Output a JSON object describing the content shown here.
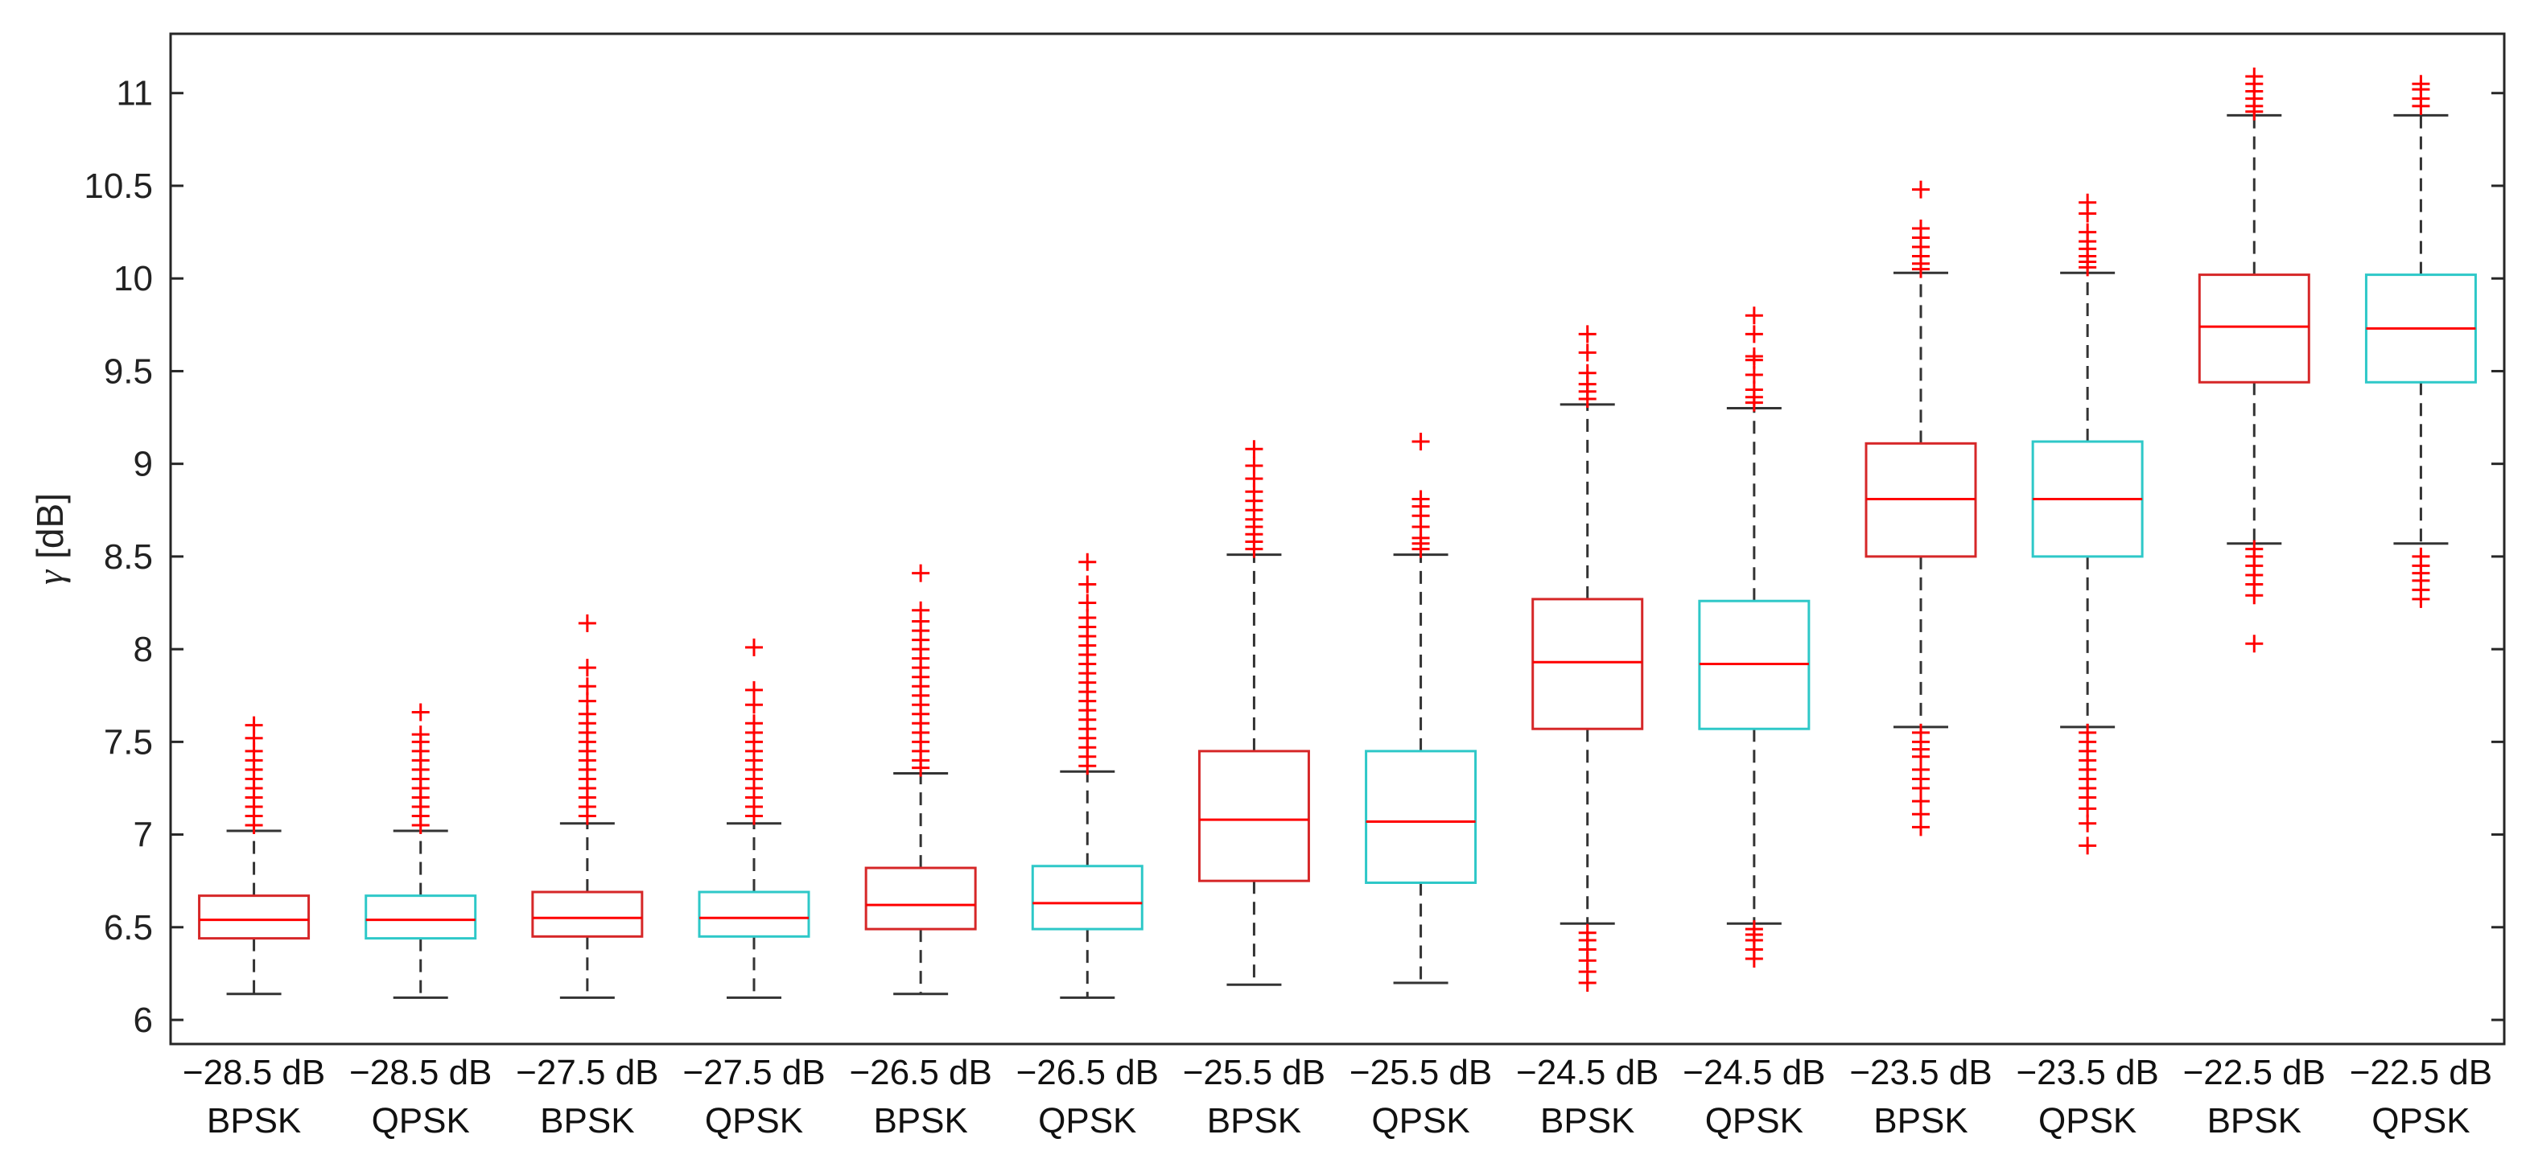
{
  "chart_data": {
    "type": "boxplot",
    "title": "",
    "xlabel": "",
    "ylabel_symbol": "γ",
    "ylabel_unit": "[dB]",
    "ylim": [
      5.87,
      11.32
    ],
    "yticks": [
      6,
      6.5,
      7,
      7.5,
      8,
      8.5,
      9,
      9.5,
      10,
      10.5,
      11
    ],
    "ytick_labels": [
      "6",
      "6.5",
      "7",
      "7.5",
      "8",
      "8.5",
      "9",
      "9.5",
      "10",
      "10.5",
      "11"
    ],
    "colors": {
      "BPSK": "#d62728",
      "QPSK": "#2ec8c8",
      "median": "#ff0000",
      "whisker": "#333333",
      "outlier": "#ff0000"
    },
    "categories": [
      {
        "snr": "−28.5 dB",
        "mod": "BPSK",
        "q1": 6.44,
        "median": 6.54,
        "q3": 6.67,
        "whisker_low": 6.14,
        "whisker_high": 7.02,
        "outliers": [
          7.05,
          7.1,
          7.15,
          7.2,
          7.25,
          7.3,
          7.35,
          7.4,
          7.45,
          7.52,
          7.59
        ]
      },
      {
        "snr": "−28.5 dB",
        "mod": "QPSK",
        "q1": 6.44,
        "median": 6.54,
        "q3": 6.67,
        "whisker_low": 6.12,
        "whisker_high": 7.02,
        "outliers": [
          7.05,
          7.1,
          7.15,
          7.2,
          7.25,
          7.3,
          7.35,
          7.4,
          7.45,
          7.5,
          7.54,
          7.66
        ]
      },
      {
        "snr": "−27.5 dB",
        "mod": "BPSK",
        "q1": 6.45,
        "median": 6.55,
        "q3": 6.69,
        "whisker_low": 6.12,
        "whisker_high": 7.06,
        "outliers": [
          7.1,
          7.15,
          7.2,
          7.25,
          7.3,
          7.35,
          7.4,
          7.45,
          7.5,
          7.55,
          7.6,
          7.65,
          7.72,
          7.8,
          7.9,
          8.14
        ]
      },
      {
        "snr": "−27.5 dB",
        "mod": "QPSK",
        "q1": 6.45,
        "median": 6.55,
        "q3": 6.69,
        "whisker_low": 6.12,
        "whisker_high": 7.06,
        "outliers": [
          7.1,
          7.15,
          7.2,
          7.25,
          7.3,
          7.35,
          7.4,
          7.45,
          7.5,
          7.55,
          7.6,
          7.7,
          7.78,
          8.01
        ]
      },
      {
        "snr": "−26.5 dB",
        "mod": "BPSK",
        "q1": 6.49,
        "median": 6.62,
        "q3": 6.82,
        "whisker_low": 6.14,
        "whisker_high": 7.33,
        "outliers": [
          7.36,
          7.4,
          7.45,
          7.5,
          7.55,
          7.6,
          7.65,
          7.7,
          7.75,
          7.8,
          7.85,
          7.9,
          7.95,
          8.0,
          8.05,
          8.1,
          8.15,
          8.21,
          8.41
        ]
      },
      {
        "snr": "−26.5 dB",
        "mod": "QPSK",
        "q1": 6.49,
        "median": 6.63,
        "q3": 6.83,
        "whisker_low": 6.12,
        "whisker_high": 7.34,
        "outliers": [
          7.37,
          7.42,
          7.47,
          7.52,
          7.57,
          7.62,
          7.67,
          7.72,
          7.77,
          7.82,
          7.87,
          7.92,
          7.97,
          8.02,
          8.07,
          8.12,
          8.17,
          8.25,
          8.35,
          8.47
        ]
      },
      {
        "snr": "−25.5 dB",
        "mod": "BPSK",
        "q1": 6.75,
        "median": 7.08,
        "q3": 7.45,
        "whisker_low": 6.19,
        "whisker_high": 8.51,
        "outliers": [
          8.54,
          8.58,
          8.62,
          8.66,
          8.7,
          8.75,
          8.8,
          8.85,
          8.92,
          8.99,
          9.08
        ]
      },
      {
        "snr": "−25.5 dB",
        "mod": "QPSK",
        "q1": 6.74,
        "median": 7.07,
        "q3": 7.45,
        "whisker_low": 6.2,
        "whisker_high": 8.51,
        "outliers": [
          8.54,
          8.57,
          8.6,
          8.66,
          8.72,
          8.77,
          8.81,
          9.12
        ]
      },
      {
        "snr": "−24.5 dB",
        "mod": "BPSK",
        "q1": 7.57,
        "median": 7.93,
        "q3": 8.27,
        "whisker_low": 6.52,
        "whisker_high": 9.32,
        "outliers": [
          6.2,
          6.26,
          6.32,
          6.38,
          6.43,
          6.47,
          9.35,
          9.39,
          9.43,
          9.49,
          9.6,
          9.7
        ]
      },
      {
        "snr": "−24.5 dB",
        "mod": "QPSK",
        "q1": 7.57,
        "median": 7.92,
        "q3": 8.26,
        "whisker_low": 6.52,
        "whisker_high": 9.3,
        "outliers": [
          6.33,
          6.38,
          6.43,
          6.46,
          6.49,
          9.33,
          9.36,
          9.4,
          9.48,
          9.56,
          9.58,
          9.7,
          9.8
        ]
      },
      {
        "snr": "−23.5 dB",
        "mod": "BPSK",
        "q1": 8.5,
        "median": 8.81,
        "q3": 9.11,
        "whisker_low": 7.58,
        "whisker_high": 10.03,
        "outliers": [
          7.04,
          7.11,
          7.18,
          7.25,
          7.3,
          7.35,
          7.42,
          7.46,
          7.5,
          7.55,
          10.05,
          10.08,
          10.12,
          10.17,
          10.22,
          10.27,
          10.48
        ]
      },
      {
        "snr": "−23.5 dB",
        "mod": "QPSK",
        "q1": 8.5,
        "median": 8.81,
        "q3": 9.12,
        "whisker_low": 7.58,
        "whisker_high": 10.03,
        "outliers": [
          6.94,
          7.06,
          7.14,
          7.2,
          7.25,
          7.3,
          7.35,
          7.4,
          7.45,
          7.5,
          7.55,
          10.06,
          10.09,
          10.12,
          10.16,
          10.2,
          10.25,
          10.35,
          10.41
        ]
      },
      {
        "snr": "−22.5 dB",
        "mod": "BPSK",
        "q1": 9.44,
        "median": 9.74,
        "q3": 10.02,
        "whisker_low": 8.57,
        "whisker_high": 10.88,
        "outliers": [
          8.03,
          8.29,
          8.35,
          8.4,
          8.45,
          8.5,
          8.54,
          10.9,
          10.93,
          10.97,
          11.01,
          11.05,
          11.09
        ]
      },
      {
        "snr": "−22.5 dB",
        "mod": "QPSK",
        "q1": 9.44,
        "median": 9.73,
        "q3": 10.02,
        "whisker_low": 8.57,
        "whisker_high": 10.88,
        "outliers": [
          8.27,
          8.32,
          8.37,
          8.41,
          8.45,
          8.5,
          10.93,
          10.97,
          11.02,
          11.05
        ]
      }
    ]
  }
}
